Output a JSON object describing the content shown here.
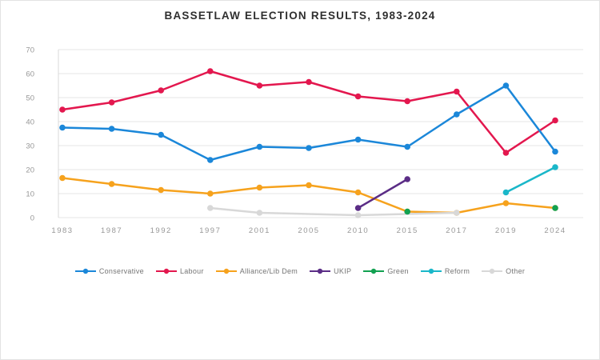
{
  "title": "BASSETLAW ELECTION RESULTS, 1983-2024",
  "chart_data": {
    "type": "line",
    "title": "BASSETLAW ELECTION RESULTS, 1983-2024",
    "categories": [
      "1983",
      "1987",
      "1992",
      "1997",
      "2001",
      "2005",
      "2010",
      "2015",
      "2017",
      "2019",
      "2024"
    ],
    "xlabel": "",
    "ylabel": "",
    "ylim": [
      0,
      70
    ],
    "yticks": [
      0,
      10,
      20,
      30,
      40,
      50,
      60,
      70
    ],
    "grid": true,
    "legend_position": "bottom",
    "colors": {
      "gridline": "#e4e4e4",
      "axis": "#d9d9d9",
      "tick_text": "#979797",
      "title_text": "#2f2f2f"
    },
    "series": [
      {
        "name": "Conservative",
        "color": "#1b87d9",
        "values": [
          37.5,
          37,
          34.5,
          24,
          29.5,
          29,
          32.5,
          29.5,
          43,
          55,
          27.5
        ]
      },
      {
        "name": "Labour",
        "color": "#e3174e",
        "values": [
          45,
          48,
          53,
          61,
          55,
          56.5,
          50.5,
          48.5,
          52.5,
          27,
          40.5
        ]
      },
      {
        "name": "Alliance/Lib Dem",
        "color": "#f6a21d",
        "values": [
          16.5,
          14,
          11.5,
          10,
          12.5,
          13.5,
          10.5,
          2.5,
          2,
          6,
          4
        ]
      },
      {
        "name": "UKIP",
        "color": "#5b2d86",
        "values": [
          null,
          null,
          null,
          null,
          null,
          null,
          4,
          16,
          null,
          null,
          null
        ]
      },
      {
        "name": "Green",
        "color": "#12a151",
        "values": [
          null,
          null,
          null,
          null,
          null,
          null,
          null,
          2.5,
          null,
          null,
          4
        ],
        "connect_gaps": false
      },
      {
        "name": "Reform",
        "color": "#1ab7c9",
        "values": [
          null,
          null,
          null,
          null,
          null,
          null,
          null,
          null,
          null,
          10.5,
          21
        ]
      },
      {
        "name": "Other",
        "color": "#d8d8d8",
        "values": [
          null,
          null,
          null,
          4,
          2,
          null,
          1,
          null,
          2,
          null,
          null
        ]
      }
    ],
    "draw_order": [
      "Alliance/Lib Dem",
      "Other",
      "UKIP",
      "Green",
      "Reform",
      "Labour",
      "Conservative"
    ]
  }
}
